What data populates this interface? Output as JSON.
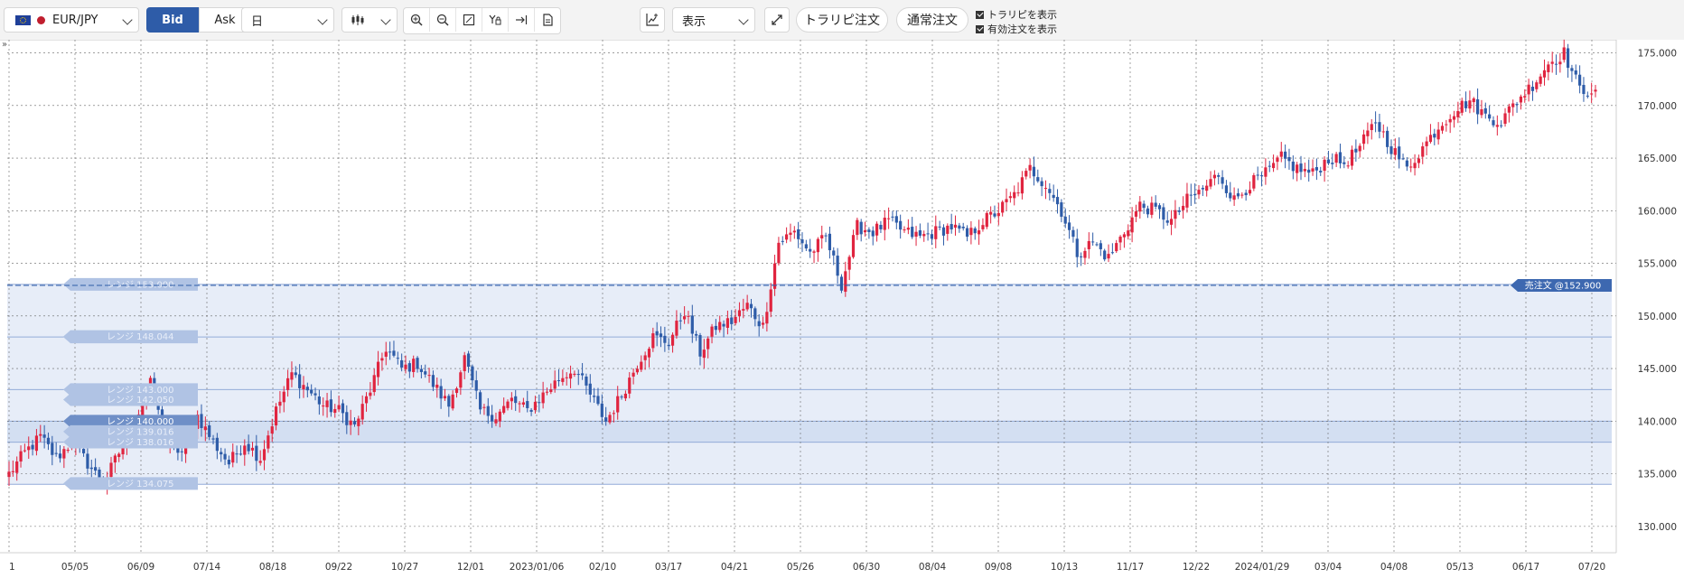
{
  "toolbar": {
    "pair": "EUR/JPY",
    "bid_label": "Bid",
    "ask_label": "Ask",
    "period": "日",
    "chart_type_icon": "candlestick-icon",
    "display_select": "表示",
    "trailing_order_label": "トラリピ注文",
    "normal_order_label": "通常注文",
    "show_trap_label": "トラリピを表示",
    "show_orders_label": "有効注文を表示"
  },
  "chart_data": {
    "type": "candlestick",
    "title": "",
    "y_ticks": [
      "130.000",
      "135.000",
      "140.000",
      "145.000",
      "150.000",
      "155.000",
      "160.000",
      "165.000",
      "170.000",
      "175.000"
    ],
    "ylim": [
      128,
      178
    ],
    "x_ticks": [
      "1",
      "05/05",
      "06/09",
      "07/14",
      "08/18",
      "09/22",
      "10/27",
      "12/01",
      "2023/01/06",
      "02/10",
      "03/17",
      "04/21",
      "05/26",
      "06/30",
      "08/04",
      "09/08",
      "10/13",
      "11/17",
      "12/22",
      "2024/01/29",
      "03/04",
      "04/08",
      "05/13",
      "06/17",
      "07/20"
    ],
    "up_color": "#e0243f",
    "down_color": "#2e5ca8",
    "close_anchors": [
      135.0,
      137.0,
      138.5,
      136.5,
      138.0,
      136.0,
      134.0,
      137.0,
      140.0,
      143.5,
      138.0,
      137.0,
      140.5,
      138.0,
      136.0,
      138.0,
      136.5,
      141.0,
      144.5,
      143.0,
      141.5,
      141.0,
      139.5,
      143.0,
      147.0,
      145.0,
      145.5,
      143.5,
      141.5,
      146.0,
      141.0,
      140.5,
      142.0,
      141.0,
      142.5,
      144.0,
      145.0,
      142.5,
      140.0,
      142.5,
      145.5,
      148.0,
      147.5,
      150.5,
      146.5,
      149.0,
      149.5,
      151.0,
      149.0,
      157.0,
      158.0,
      156.0,
      157.5,
      153.0,
      158.5,
      158.0,
      159.0,
      158.0,
      157.5,
      158.0,
      158.5,
      157.5,
      159.0,
      160.0,
      161.5,
      164.0,
      162.5,
      160.0,
      156.0,
      157.0,
      155.5,
      158.0,
      160.5,
      160.0,
      159.0,
      161.0,
      162.0,
      163.5,
      161.0,
      162.5,
      163.5,
      165.0,
      164.0,
      163.5,
      165.0,
      164.5,
      166.0,
      168.5,
      166.0,
      164.0,
      166.0,
      168.0,
      169.5,
      170.5,
      169.0,
      168.5,
      170.5,
      172.0,
      174.0,
      175.0,
      171.5,
      171.5
    ]
  },
  "range_labels": [
    {
      "text": "レンジ 153.000",
      "style": "light"
    },
    {
      "text": "レンジ 148.000",
      "style": "light"
    },
    {
      "text": "レンジ 148.044",
      "style": "light"
    },
    {
      "text": "レンジ 143.000",
      "style": "light"
    },
    {
      "text": "レンジ 142.050",
      "style": "light"
    },
    {
      "text": "レンジ 140.000",
      "style": "dark"
    },
    {
      "text": "レンジ 139.016",
      "style": "light"
    },
    {
      "text": "レンジ 138.016",
      "style": "light"
    },
    {
      "text": "レンジ 134.075",
      "style": "light"
    }
  ],
  "range_label_prices": [
    153.0,
    148.0,
    148.044,
    143.0,
    142.05,
    140.0,
    139.016,
    138.016,
    134.075
  ],
  "band_lines": [
    153.0,
    148.0,
    143.0,
    140.0,
    138.0,
    134.0
  ],
  "sell_order": {
    "label": "売注文 @152.900",
    "price": 152.9
  }
}
